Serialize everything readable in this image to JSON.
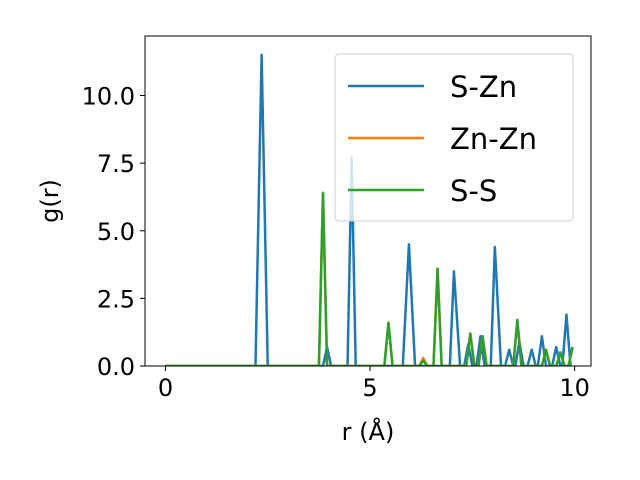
{
  "chart_data": {
    "type": "line",
    "title": "",
    "xlabel": "r (Å)",
    "ylabel": "g(r)",
    "xlim": [
      -0.5,
      10.4
    ],
    "ylim": [
      0,
      12.2
    ],
    "xticks": [
      0,
      5,
      10
    ],
    "xtick_labels": [
      "0",
      "5",
      "10"
    ],
    "yticks": [
      0,
      2.5,
      5,
      7.5,
      10
    ],
    "ytick_labels": [
      "0.0",
      "2.5",
      "5.0",
      "7.5",
      "10.0"
    ],
    "grid": false,
    "legend_position": "top-right",
    "series": [
      {
        "name": "S-Zn",
        "color": "#1f77b4",
        "points": [
          [
            0,
            0
          ],
          [
            2.2,
            0
          ],
          [
            2.35,
            11.5
          ],
          [
            2.5,
            0
          ],
          [
            3.85,
            0
          ],
          [
            3.95,
            0.7
          ],
          [
            4.05,
            0
          ],
          [
            4.45,
            0
          ],
          [
            4.55,
            7.7
          ],
          [
            4.65,
            0
          ],
          [
            5.8,
            0
          ],
          [
            5.95,
            4.5
          ],
          [
            6.1,
            0
          ],
          [
            6.95,
            0
          ],
          [
            7.05,
            3.5
          ],
          [
            7.2,
            0
          ],
          [
            7.3,
            0
          ],
          [
            7.4,
            0.8
          ],
          [
            7.5,
            0
          ],
          [
            7.6,
            0
          ],
          [
            7.7,
            1.1
          ],
          [
            7.8,
            0
          ],
          [
            7.95,
            0
          ],
          [
            8.05,
            4.4
          ],
          [
            8.2,
            0
          ],
          [
            8.3,
            0
          ],
          [
            8.4,
            0.6
          ],
          [
            8.5,
            0
          ],
          [
            8.55,
            0
          ],
          [
            8.65,
            0.9
          ],
          [
            8.75,
            0
          ],
          [
            8.85,
            0
          ],
          [
            8.95,
            0.6
          ],
          [
            9.05,
            0
          ],
          [
            9.1,
            0
          ],
          [
            9.2,
            1.1
          ],
          [
            9.3,
            0
          ],
          [
            9.45,
            0
          ],
          [
            9.55,
            0.7
          ],
          [
            9.65,
            0
          ],
          [
            9.7,
            0
          ],
          [
            9.8,
            1.9
          ],
          [
            9.9,
            0
          ]
        ]
      },
      {
        "name": "Zn-Zn",
        "color": "#ff7f0e",
        "points": [
          [
            0,
            0
          ],
          [
            3.75,
            0
          ],
          [
            3.85,
            6.4
          ],
          [
            3.95,
            0
          ],
          [
            5.35,
            0
          ],
          [
            5.45,
            1.6
          ],
          [
            5.55,
            0
          ],
          [
            6.2,
            0
          ],
          [
            6.3,
            0.3
          ],
          [
            6.4,
            0
          ],
          [
            6.55,
            0
          ],
          [
            6.65,
            3.6
          ],
          [
            6.75,
            0
          ],
          [
            7.35,
            0
          ],
          [
            7.45,
            1.2
          ],
          [
            7.55,
            0
          ],
          [
            7.65,
            0
          ],
          [
            7.75,
            1.1
          ],
          [
            7.85,
            0
          ],
          [
            8.5,
            0
          ],
          [
            8.6,
            1.7
          ],
          [
            8.7,
            0
          ],
          [
            9.2,
            0
          ],
          [
            9.3,
            0.6
          ],
          [
            9.4,
            0
          ],
          [
            9.55,
            0
          ],
          [
            9.65,
            0.5
          ],
          [
            9.75,
            0
          ],
          [
            9.85,
            0
          ],
          [
            9.95,
            0.7
          ]
        ]
      },
      {
        "name": "S-S",
        "color": "#2ca02c",
        "points": [
          [
            0,
            0
          ],
          [
            3.75,
            0
          ],
          [
            3.85,
            6.4
          ],
          [
            3.95,
            0
          ],
          [
            5.35,
            0
          ],
          [
            5.45,
            1.6
          ],
          [
            5.55,
            0
          ],
          [
            6.2,
            0
          ],
          [
            6.3,
            0.2
          ],
          [
            6.4,
            0
          ],
          [
            6.55,
            0
          ],
          [
            6.65,
            3.6
          ],
          [
            6.75,
            0
          ],
          [
            7.35,
            0
          ],
          [
            7.45,
            1.2
          ],
          [
            7.55,
            0
          ],
          [
            7.65,
            0
          ],
          [
            7.75,
            1.1
          ],
          [
            7.85,
            0
          ],
          [
            8.5,
            0
          ],
          [
            8.6,
            1.7
          ],
          [
            8.7,
            0
          ],
          [
            9.2,
            0
          ],
          [
            9.3,
            0.6
          ],
          [
            9.4,
            0
          ],
          [
            9.55,
            0
          ],
          [
            9.65,
            0.5
          ],
          [
            9.75,
            0
          ],
          [
            9.85,
            0
          ],
          [
            9.95,
            0.7
          ]
        ]
      }
    ]
  }
}
